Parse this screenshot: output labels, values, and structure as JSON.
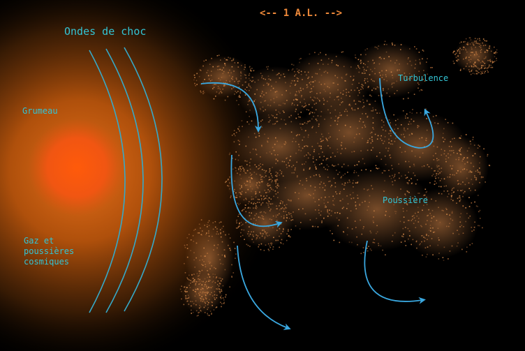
{
  "labels": {
    "scale": "<-- 1 A.L. -->",
    "shock_waves": "Ondes de choc",
    "clump": "Grumeau",
    "turbulence": "Turbulence",
    "dust": "Poussière",
    "gas": "Gaz et\npoussières\ncosmiques"
  },
  "colors": {
    "background": "#000000",
    "label": "#33c4d4",
    "scale_label": "#f08a3a",
    "dust": "#d9894a",
    "clump_core": "#ff5a0a",
    "arrows": "#3aa8e0"
  },
  "icons": [
    "arrow-icon"
  ]
}
